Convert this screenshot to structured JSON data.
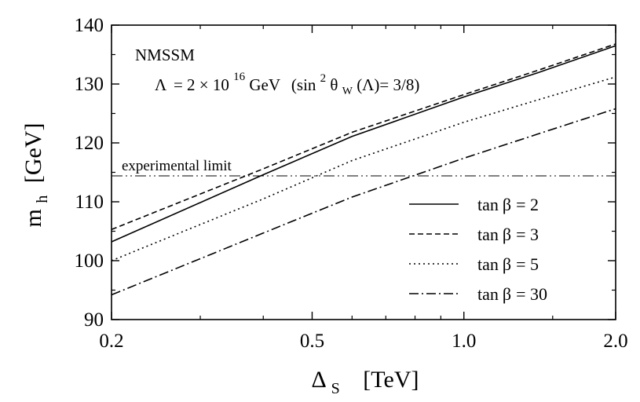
{
  "chart_data": {
    "type": "line",
    "title": "NMSSM",
    "annotation": {
      "lambda_symbol": "Λ",
      "lambda_value_prefix": "= 2",
      "times": "×",
      "base": "10",
      "exponent": "16",
      "unit": "GeV",
      "paren_open": "(sin",
      "sin_exp": "2",
      "theta": "θ",
      "theta_sub": "W",
      "paren_arg": "(Λ)= 3/8)"
    },
    "xlabel": {
      "symbol": "Δ",
      "sub": "S",
      "unit": "[TeV]"
    },
    "ylabel": {
      "symbol": "m",
      "sub": "h",
      "unit": "[GeV]"
    },
    "x_scale": "log",
    "xlim": [
      0.2,
      2.0
    ],
    "ylim": [
      90,
      140
    ],
    "x_ticks": [
      {
        "value": 0.2,
        "label": "0.2"
      },
      {
        "value": 0.5,
        "label": "0.5"
      },
      {
        "value": 1.0,
        "label": "1.0"
      },
      {
        "value": 2.0,
        "label": "2.0"
      }
    ],
    "y_ticks": [
      {
        "value": 90,
        "label": "90"
      },
      {
        "value": 100,
        "label": "100"
      },
      {
        "value": 110,
        "label": "110"
      },
      {
        "value": 120,
        "label": "120"
      },
      {
        "value": 130,
        "label": "130"
      },
      {
        "value": 140,
        "label": "140"
      }
    ],
    "reference_line": {
      "y": 114.4,
      "label": "experimental limit",
      "style": "dash-dot-dot"
    },
    "legend_position": "lower-right",
    "series": [
      {
        "name": "tan β = 2",
        "label_prefix": "tan",
        "beta": "β",
        "label_value": "= 2",
        "style": "solid",
        "x": [
          0.2,
          0.4,
          0.6,
          1.0,
          1.4,
          2.0
        ],
        "values": [
          103.2,
          114.6,
          121.1,
          127.8,
          131.9,
          136.5
        ]
      },
      {
        "name": "tan β = 3",
        "label_prefix": "tan",
        "beta": "β",
        "label_value": "= 3",
        "style": "dashed",
        "x": [
          0.2,
          0.4,
          0.6,
          1.0,
          1.4,
          2.0
        ],
        "values": [
          105.3,
          115.6,
          121.8,
          128.2,
          132.3,
          136.8
        ]
      },
      {
        "name": "tan β = 5",
        "label_prefix": "tan",
        "beta": "β",
        "label_value": "= 5",
        "style": "dotted",
        "x": [
          0.2,
          0.4,
          0.6,
          1.0,
          1.4,
          2.0
        ],
        "values": [
          100.0,
          110.5,
          117.0,
          123.5,
          127.3,
          131.2
        ]
      },
      {
        "name": "tan β = 30",
        "label_prefix": "tan",
        "beta": "β",
        "label_value": "= 30",
        "style": "dash-dot",
        "x": [
          0.2,
          0.4,
          0.6,
          1.0,
          1.4,
          2.0
        ],
        "values": [
          94.2,
          104.7,
          110.8,
          117.4,
          121.5,
          125.8
        ]
      }
    ]
  }
}
